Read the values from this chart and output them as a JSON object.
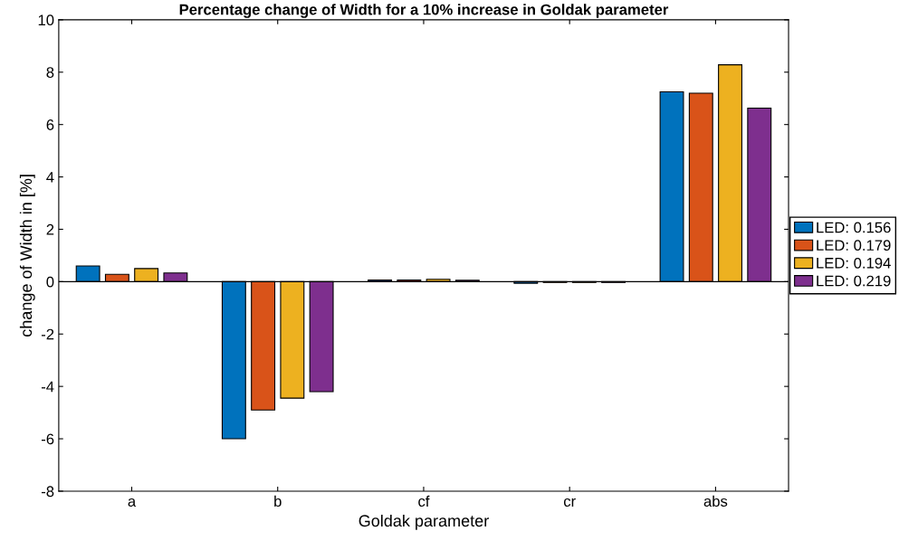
{
  "chart_data": {
    "type": "bar",
    "title": "Percentage change of Width for a 10% increase in Goldak parameter",
    "xlabel": "Goldak parameter",
    "ylabel": "change of Width in [%]",
    "categories": [
      "a",
      "b",
      "cf",
      "cr",
      "abs"
    ],
    "series": [
      {
        "name": "LED: 0.156",
        "color": "#0072bd",
        "values": [
          0.6,
          -6.0,
          0.06,
          -0.06,
          7.25
        ]
      },
      {
        "name": "LED: 0.179",
        "color": "#d95319",
        "values": [
          0.28,
          -4.9,
          0.06,
          -0.03,
          7.2
        ]
      },
      {
        "name": "LED: 0.194",
        "color": "#edb120",
        "values": [
          0.5,
          -4.45,
          0.09,
          -0.03,
          8.28
        ]
      },
      {
        "name": "LED: 0.219",
        "color": "#7e2f8e",
        "values": [
          0.33,
          -4.2,
          0.05,
          -0.03,
          6.63
        ]
      }
    ],
    "ylim": [
      -8,
      10
    ],
    "yticks": [
      -8,
      -6,
      -4,
      -2,
      0,
      2,
      4,
      6,
      8,
      10
    ],
    "legend": "right"
  }
}
